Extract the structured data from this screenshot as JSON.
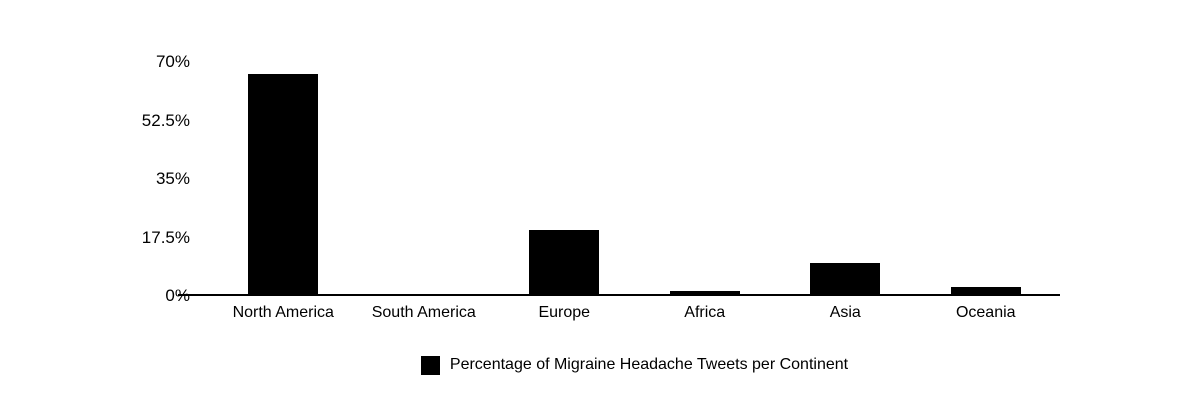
{
  "chart_data": {
    "type": "bar",
    "title": "",
    "xlabel": "",
    "ylabel": "",
    "categories": [
      "North America",
      "South America",
      "Europe",
      "Africa",
      "Asia",
      "Oceania"
    ],
    "values": [
      66.5,
      0.4,
      19.7,
      1.5,
      9.8,
      2.6
    ],
    "series_label": "Percentage of Migraine Headache Tweets per Continent",
    "ylim": [
      0,
      70
    ],
    "yticks": [
      {
        "label": "70%",
        "value": 70
      },
      {
        "label": "52.5%",
        "value": 52.5
      },
      {
        "label": "35%",
        "value": 35
      },
      {
        "label": "17.5%",
        "value": 17.5
      },
      {
        "label": "0%",
        "value": 0
      }
    ],
    "grid": false,
    "legend_position": "bottom",
    "colors": {
      "bar": "#000000",
      "axis": "#000000",
      "text": "#000000",
      "background": "#ffffff"
    }
  }
}
